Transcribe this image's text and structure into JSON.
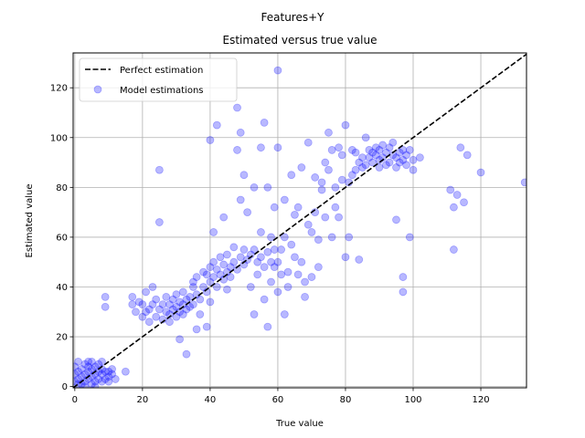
{
  "chart_data": {
    "type": "scatter",
    "suptitle": "Features+Y",
    "title": "Estimated versus true value",
    "xlabel": "True value",
    "ylabel": "Estimated value",
    "xlim": [
      -0.5,
      133.5
    ],
    "ylim": [
      -0.5,
      134
    ],
    "xticks": [
      0,
      20,
      40,
      60,
      80,
      100,
      120
    ],
    "yticks": [
      0,
      20,
      40,
      60,
      80,
      100,
      120
    ],
    "grid": true,
    "legend": {
      "placement": "top-left",
      "entries": [
        {
          "name": "Perfect estimation",
          "kind": "line",
          "color": "#000000",
          "dash": "dashed"
        },
        {
          "name": "Model estimations",
          "kind": "marker",
          "color": "#0000ff"
        }
      ]
    },
    "series": [
      {
        "name": "Perfect estimation",
        "kind": "line",
        "color": "#000000",
        "x": [
          -0.5,
          133.5
        ],
        "y": [
          -0.5,
          133.5
        ]
      },
      {
        "name": "Model estimations",
        "kind": "scatter",
        "color": "#0000ff",
        "alpha": 0.28,
        "points": [
          [
            0,
            2
          ],
          [
            0,
            5
          ],
          [
            0,
            8
          ],
          [
            1,
            3
          ],
          [
            1,
            6
          ],
          [
            1,
            10
          ],
          [
            2,
            1
          ],
          [
            2,
            4
          ],
          [
            2,
            7
          ],
          [
            3,
            2
          ],
          [
            3,
            5
          ],
          [
            3,
            9
          ],
          [
            4,
            3
          ],
          [
            4,
            6
          ],
          [
            4,
            8
          ],
          [
            5,
            1
          ],
          [
            5,
            4
          ],
          [
            5,
            7
          ],
          [
            5,
            10
          ],
          [
            6,
            2
          ],
          [
            6,
            5
          ],
          [
            6,
            8
          ],
          [
            7,
            3
          ],
          [
            7,
            6
          ],
          [
            7,
            9
          ],
          [
            8,
            2
          ],
          [
            8,
            5
          ],
          [
            8,
            7
          ],
          [
            9,
            3
          ],
          [
            9,
            6
          ],
          [
            9,
            36
          ],
          [
            9,
            32
          ],
          [
            10,
            4
          ],
          [
            10,
            6
          ],
          [
            10,
            2
          ],
          [
            11,
            5
          ],
          [
            11,
            7
          ],
          [
            12,
            3
          ],
          [
            15,
            6
          ],
          [
            3,
            0
          ],
          [
            6,
            0
          ],
          [
            1,
            1
          ],
          [
            4,
            10
          ],
          [
            8,
            10
          ],
          [
            17,
            36
          ],
          [
            17,
            33
          ],
          [
            18,
            30
          ],
          [
            19,
            34
          ],
          [
            20,
            28
          ],
          [
            20,
            33
          ],
          [
            21,
            30
          ],
          [
            21,
            38
          ],
          [
            22,
            26
          ],
          [
            22,
            31
          ],
          [
            23,
            33
          ],
          [
            23,
            40
          ],
          [
            24,
            28
          ],
          [
            24,
            35
          ],
          [
            25,
            31
          ],
          [
            25,
            87
          ],
          [
            25,
            66
          ],
          [
            26,
            27
          ],
          [
            26,
            33
          ],
          [
            27,
            30
          ],
          [
            27,
            36
          ],
          [
            28,
            29
          ],
          [
            28,
            33
          ],
          [
            28,
            26
          ],
          [
            29,
            31
          ],
          [
            29,
            35
          ],
          [
            30,
            28
          ],
          [
            30,
            32
          ],
          [
            30,
            37
          ],
          [
            31,
            30
          ],
          [
            31,
            34
          ],
          [
            31,
            19
          ],
          [
            32,
            29
          ],
          [
            32,
            33
          ],
          [
            32,
            38
          ],
          [
            33,
            31
          ],
          [
            33,
            35
          ],
          [
            33,
            13
          ],
          [
            34,
            32
          ],
          [
            34,
            36
          ],
          [
            35,
            33
          ],
          [
            35,
            40
          ],
          [
            35,
            42
          ],
          [
            36,
            37
          ],
          [
            36,
            44
          ],
          [
            36,
            23
          ],
          [
            37,
            35
          ],
          [
            37,
            29
          ],
          [
            38,
            40
          ],
          [
            38,
            46
          ],
          [
            39,
            38
          ],
          [
            39,
            45
          ],
          [
            39,
            24
          ],
          [
            40,
            42
          ],
          [
            40,
            48
          ],
          [
            40,
            34
          ],
          [
            40,
            99
          ],
          [
            41,
            44
          ],
          [
            41,
            50
          ],
          [
            41,
            62
          ],
          [
            42,
            40
          ],
          [
            42,
            47
          ],
          [
            42,
            105
          ],
          [
            43,
            45
          ],
          [
            43,
            52
          ],
          [
            44,
            43
          ],
          [
            44,
            49
          ],
          [
            44,
            68
          ],
          [
            45,
            46
          ],
          [
            45,
            53
          ],
          [
            45,
            39
          ],
          [
            46,
            48
          ],
          [
            46,
            44
          ],
          [
            47,
            50
          ],
          [
            47,
            56
          ],
          [
            48,
            47
          ],
          [
            48,
            112
          ],
          [
            48,
            95
          ],
          [
            49,
            52
          ],
          [
            49,
            75
          ],
          [
            49,
            102
          ],
          [
            50,
            49
          ],
          [
            50,
            55
          ],
          [
            50,
            85
          ],
          [
            51,
            51
          ],
          [
            51,
            70
          ],
          [
            52,
            53
          ],
          [
            52,
            40
          ],
          [
            53,
            55
          ],
          [
            53,
            29
          ],
          [
            53,
            80
          ],
          [
            54,
            50
          ],
          [
            54,
            45
          ],
          [
            55,
            52
          ],
          [
            55,
            96
          ],
          [
            55,
            62
          ],
          [
            56,
            48
          ],
          [
            56,
            106
          ],
          [
            56,
            35
          ],
          [
            57,
            54
          ],
          [
            57,
            80
          ],
          [
            57,
            24
          ],
          [
            58,
            50
          ],
          [
            58,
            60
          ],
          [
            58,
            42
          ],
          [
            59,
            55
          ],
          [
            59,
            72
          ],
          [
            59,
            48
          ],
          [
            60,
            50
          ],
          [
            60,
            127
          ],
          [
            60,
            38
          ],
          [
            60,
            96
          ],
          [
            61,
            45
          ],
          [
            61,
            55
          ],
          [
            62,
            60
          ],
          [
            62,
            75
          ],
          [
            62,
            29
          ],
          [
            63,
            46
          ],
          [
            63,
            40
          ],
          [
            64,
            57
          ],
          [
            64,
            85
          ],
          [
            65,
            52
          ],
          [
            65,
            69
          ],
          [
            66,
            72
          ],
          [
            66,
            45
          ],
          [
            67,
            50
          ],
          [
            67,
            88
          ],
          [
            68,
            42
          ],
          [
            68,
            36
          ],
          [
            69,
            65
          ],
          [
            69,
            98
          ],
          [
            70,
            62
          ],
          [
            70,
            44
          ],
          [
            71,
            84
          ],
          [
            71,
            70
          ],
          [
            72,
            59
          ],
          [
            72,
            48
          ],
          [
            73,
            79
          ],
          [
            73,
            82
          ],
          [
            74,
            90
          ],
          [
            74,
            68
          ],
          [
            75,
            87
          ],
          [
            75,
            102
          ],
          [
            76,
            60
          ],
          [
            76,
            95
          ],
          [
            77,
            72
          ],
          [
            77,
            80
          ],
          [
            78,
            96
          ],
          [
            78,
            68
          ],
          [
            79,
            83
          ],
          [
            79,
            93
          ],
          [
            80,
            105
          ],
          [
            80,
            52
          ],
          [
            81,
            82
          ],
          [
            81,
            60
          ],
          [
            82,
            85
          ],
          [
            82,
            95
          ],
          [
            83,
            87
          ],
          [
            83,
            94
          ],
          [
            84,
            51
          ],
          [
            84,
            90
          ],
          [
            85,
            88
          ],
          [
            85,
            92
          ],
          [
            86,
            89
          ],
          [
            86,
            100
          ],
          [
            87,
            95
          ],
          [
            87,
            92
          ],
          [
            88,
            90
          ],
          [
            88,
            94
          ],
          [
            89,
            93
          ],
          [
            89,
            96
          ],
          [
            90,
            91
          ],
          [
            90,
            95
          ],
          [
            90,
            88
          ],
          [
            91,
            92
          ],
          [
            91,
            97
          ],
          [
            92,
            89
          ],
          [
            92,
            94
          ],
          [
            93,
            96
          ],
          [
            93,
            90
          ],
          [
            94,
            93
          ],
          [
            94,
            98
          ],
          [
            95,
            92
          ],
          [
            95,
            88
          ],
          [
            95,
            67
          ],
          [
            96,
            94
          ],
          [
            96,
            90
          ],
          [
            97,
            91
          ],
          [
            97,
            95
          ],
          [
            97,
            38
          ],
          [
            97,
            44
          ],
          [
            98,
            93
          ],
          [
            98,
            89
          ],
          [
            99,
            95
          ],
          [
            99,
            60
          ],
          [
            100,
            91
          ],
          [
            100,
            87
          ],
          [
            102,
            92
          ],
          [
            111,
            79
          ],
          [
            112,
            55
          ],
          [
            112,
            72
          ],
          [
            113,
            77
          ],
          [
            114,
            96
          ],
          [
            115,
            74
          ],
          [
            116,
            93
          ],
          [
            120,
            86
          ],
          [
            133,
            82
          ]
        ]
      }
    ]
  }
}
